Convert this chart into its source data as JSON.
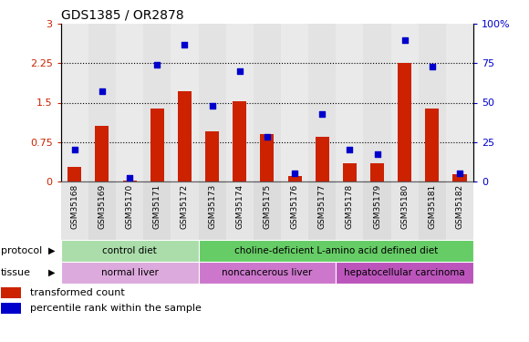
{
  "title": "GDS1385 / OR2878",
  "samples": [
    "GSM35168",
    "GSM35169",
    "GSM35170",
    "GSM35171",
    "GSM35172",
    "GSM35173",
    "GSM35174",
    "GSM35175",
    "GSM35176",
    "GSM35177",
    "GSM35178",
    "GSM35179",
    "GSM35180",
    "GSM35181",
    "GSM35182"
  ],
  "transformed_count": [
    0.28,
    1.05,
    0.02,
    1.38,
    1.72,
    0.95,
    1.52,
    0.9,
    0.1,
    0.85,
    0.35,
    0.35,
    2.25,
    1.38,
    0.13
  ],
  "percentile_rank": [
    20,
    57,
    2,
    74,
    87,
    48,
    70,
    28,
    5,
    43,
    20,
    17,
    90,
    73,
    5
  ],
  "bar_color": "#cc2200",
  "dot_color": "#0000cc",
  "ylim_left": [
    0,
    3
  ],
  "ylim_right": [
    0,
    100
  ],
  "yticks_left": [
    0,
    0.75,
    1.5,
    2.25,
    3
  ],
  "yticks_right": [
    0,
    25,
    50,
    75,
    100
  ],
  "ylabel_left_color": "#cc2200",
  "ylabel_right_color": "#0000cc",
  "protocol_labels": [
    "control diet",
    "choline-deficient L-amino acid defined diet"
  ],
  "protocol_color_1": "#aaddaa",
  "protocol_color_2": "#66cc66",
  "tissue_labels": [
    "normal liver",
    "noncancerous liver",
    "hepatocellular carcinoma"
  ],
  "tissue_color_1": "#ddaadd",
  "tissue_color_2": "#cc77cc",
  "tissue_color_3": "#bb55bb",
  "legend_bar_label": "transformed count",
  "legend_dot_label": "percentile rank within the sample",
  "protocol_row_label": "protocol",
  "tissue_row_label": "tissue",
  "col_bg_even": "#cccccc",
  "col_bg_odd": "#bbbbbb",
  "plot_bg_color": "#ffffff"
}
